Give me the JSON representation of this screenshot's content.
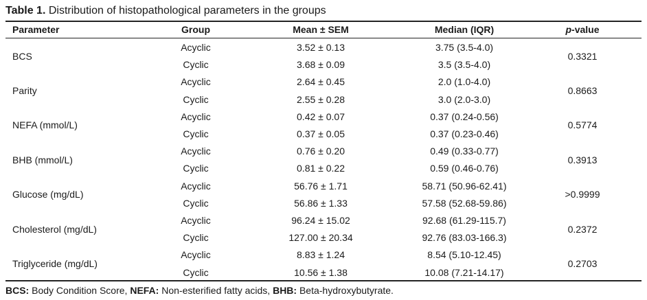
{
  "caption": {
    "label": "Table 1.",
    "text": " Distribution of histopathological parameters in the groups"
  },
  "headers": {
    "parameter": "Parameter",
    "group": "Group",
    "mean": "Mean ± SEM",
    "median": "Median (IQR)",
    "pvalue_italic": "p",
    "pvalue_rest": "-value"
  },
  "rows": [
    {
      "parameter": "BCS",
      "pvalue": "0.3321",
      "groups": [
        {
          "group": "Acyclic",
          "mean": "3.52 ± 0.13",
          "median": "3.75 (3.5-4.0)"
        },
        {
          "group": "Cyclic",
          "mean": "3.68 ± 0.09",
          "median": "3.5 (3.5-4.0)"
        }
      ]
    },
    {
      "parameter": "Parity",
      "pvalue": "0.8663",
      "groups": [
        {
          "group": "Acyclic",
          "mean": "2.64 ± 0.45",
          "median": "2.0 (1.0-4.0)"
        },
        {
          "group": "Cyclic",
          "mean": "2.55 ± 0.28",
          "median": "3.0 (2.0-3.0)"
        }
      ]
    },
    {
      "parameter": "NEFA (mmol/L)",
      "pvalue": "0.5774",
      "groups": [
        {
          "group": "Acyclic",
          "mean": "0.42 ± 0.07",
          "median": "0.37 (0.24-0.56)"
        },
        {
          "group": "Cyclic",
          "mean": "0.37 ± 0.05",
          "median": "0.37 (0.23-0.46)"
        }
      ]
    },
    {
      "parameter": "BHB (mmol/L)",
      "pvalue": "0.3913",
      "groups": [
        {
          "group": "Acyclic",
          "mean": "0.76 ± 0.20",
          "median": "0.49 (0.33-0.77)"
        },
        {
          "group": "Cyclic",
          "mean": "0.81 ± 0.22",
          "median": "0.59 (0.46-0.76)"
        }
      ]
    },
    {
      "parameter": "Glucose (mg/dL)",
      "pvalue": ">0.9999",
      "groups": [
        {
          "group": "Acyclic",
          "mean": "56.76 ± 1.71",
          "median": "58.71 (50.96-62.41)"
        },
        {
          "group": "Cyclic",
          "mean": "56.86 ± 1.33",
          "median": "57.58 (52.68-59.86)"
        }
      ]
    },
    {
      "parameter": "Cholesterol (mg/dL)",
      "pvalue": "0.2372",
      "groups": [
        {
          "group": "Acyclic",
          "mean": "96.24 ± 15.02",
          "median": "92.68 (61.29-115.7)"
        },
        {
          "group": "Cyclic",
          "mean": "127.00 ± 20.34",
          "median": "92.76 (83.03-166.3)"
        }
      ]
    },
    {
      "parameter": "Triglyceride (mg/dL)",
      "pvalue": "0.2703",
      "groups": [
        {
          "group": "Acyclic",
          "mean": "8.83 ± 1.24",
          "median": "8.54 (5.10-12.45)"
        },
        {
          "group": "Cyclic",
          "mean": "10.56 ± 1.38",
          "median": "10.08 (7.21-14.17)"
        }
      ]
    }
  ],
  "footnote": {
    "bcs_abbr": "BCS:",
    "bcs_def": " Body Condition Score, ",
    "nefa_abbr": "NEFA:",
    "nefa_def": " Non-esterified fatty acids, ",
    "bhb_abbr": "BHB:",
    "bhb_def": " Beta-hydroxybutyrate."
  }
}
